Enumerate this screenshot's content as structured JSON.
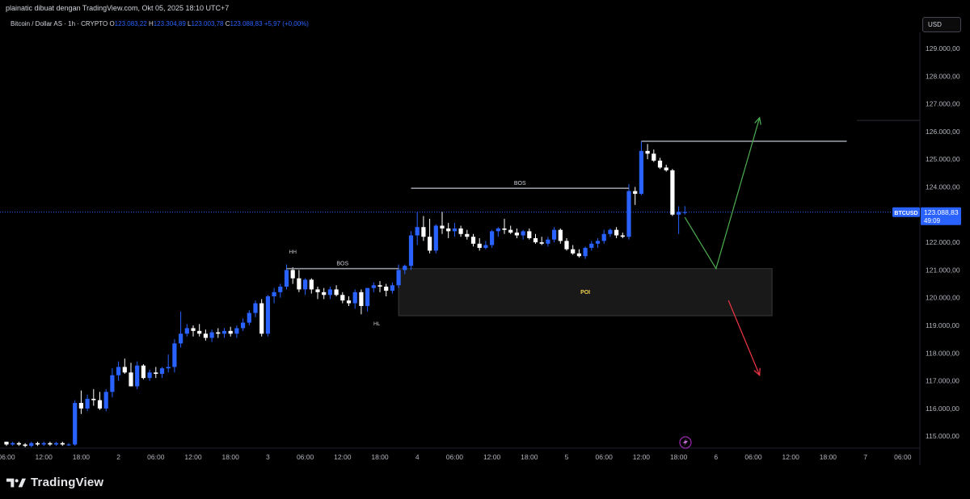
{
  "header": {
    "caption": "plainatic dibuat dengan TradingView.com, Okt 05, 2025 18:10 UTC+7"
  },
  "legend": {
    "symbol": "Bitcoin / Dollar AS · 1h · CRYPTO",
    "o_label": "O",
    "o": "123.083,22",
    "h_label": "H",
    "h": "123.304,89",
    "l_label": "L",
    "l": "123.003,78",
    "c_label": "C",
    "c": "123.088,83",
    "change": "+5,97 (+0,00%)"
  },
  "currency_button": "USD",
  "price_tag": {
    "symbol": "BTCUSD",
    "price": "123.088,83",
    "countdown": "49:09"
  },
  "brand": "TradingView",
  "colors": {
    "background": "#000000",
    "up_candle": "#2962ff",
    "down_candle": "#ffffff",
    "bos_line": "#9598a1",
    "poi_zone": "#1c1c1c",
    "bull_arrow": "#4caf50",
    "bear_arrow": "#f23645",
    "poi_text": "#f0d050"
  },
  "icons": [
    "flash-icon",
    "tradingview-logo-icon"
  ],
  "chart_data": {
    "type": "candlestick",
    "y_axis_labels": [
      "129.000,00",
      "128.000,00",
      "127.000,00",
      "126.000,00",
      "125.000,00",
      "124.000,00",
      "123.000,00",
      "122.000,00",
      "121.000,00",
      "120.000,00",
      "119.000,00",
      "118.000,00",
      "117.000,00",
      "116.000,00",
      "115.000,00"
    ],
    "y_ticks": [
      129000,
      128000,
      127000,
      126000,
      125000,
      124000,
      123000,
      122000,
      121000,
      120000,
      119000,
      118000,
      117000,
      116000,
      115000
    ],
    "ylim": [
      114600,
      129700
    ],
    "x_range": [
      0,
      120
    ],
    "x_ticks": [
      {
        "i": 0,
        "label": "06:00"
      },
      {
        "i": 6,
        "label": "12:00"
      },
      {
        "i": 12,
        "label": "18:00"
      },
      {
        "i": 18,
        "label": "2"
      },
      {
        "i": 24,
        "label": "06:00"
      },
      {
        "i": 30,
        "label": "12:00"
      },
      {
        "i": 36,
        "label": "18:00"
      },
      {
        "i": 42,
        "label": "3"
      },
      {
        "i": 48,
        "label": "06:00"
      },
      {
        "i": 54,
        "label": "12:00"
      },
      {
        "i": 60,
        "label": "18:00"
      },
      {
        "i": 66,
        "label": "4"
      },
      {
        "i": 72,
        "label": "06:00"
      },
      {
        "i": 78,
        "label": "12:00"
      },
      {
        "i": 84,
        "label": "18:00"
      },
      {
        "i": 90,
        "label": "5"
      },
      {
        "i": 96,
        "label": "06:00"
      },
      {
        "i": 102,
        "label": "12:00"
      },
      {
        "i": 108,
        "label": "18:00"
      },
      {
        "i": 114,
        "label": "6"
      },
      {
        "i": 120,
        "label": "06:00"
      },
      {
        "i": 126,
        "label": "12:00"
      },
      {
        "i": 132,
        "label": "18:00"
      },
      {
        "i": 138,
        "label": "7"
      },
      {
        "i": 144,
        "label": "06:00"
      }
    ],
    "candles": [
      [
        114800,
        114800,
        114650,
        114700
      ],
      [
        114700,
        114800,
        114650,
        114750
      ],
      [
        114750,
        114800,
        114650,
        114700
      ],
      [
        114700,
        114750,
        114600,
        114650
      ],
      [
        114650,
        114800,
        114600,
        114750
      ],
      [
        114750,
        114800,
        114650,
        114700
      ],
      [
        114700,
        114800,
        114650,
        114750
      ],
      [
        114750,
        114800,
        114650,
        114700
      ],
      [
        114700,
        114800,
        114650,
        114750
      ],
      [
        114750,
        114800,
        114650,
        114700
      ],
      [
        114700,
        114750,
        114650,
        114700
      ],
      [
        114700,
        116300,
        114650,
        116200
      ],
      [
        116200,
        116650,
        115800,
        116000
      ],
      [
        116000,
        116500,
        115900,
        116350
      ],
      [
        116350,
        116700,
        116100,
        116300
      ],
      [
        116300,
        116600,
        115950,
        116000
      ],
      [
        116000,
        116700,
        115900,
        116600
      ],
      [
        116600,
        117450,
        116400,
        117200
      ],
      [
        117200,
        117700,
        117000,
        117500
      ],
      [
        117500,
        117800,
        117250,
        117300
      ],
      [
        117300,
        117650,
        116800,
        116800
      ],
      [
        116800,
        117700,
        116700,
        117550
      ],
      [
        117550,
        117600,
        117050,
        117100
      ],
      [
        117100,
        117400,
        117000,
        117300
      ],
      [
        117300,
        117500,
        117100,
        117250
      ],
      [
        117250,
        117500,
        117100,
        117450
      ],
      [
        117450,
        117950,
        117300,
        117500
      ],
      [
        117500,
        118500,
        117300,
        118350
      ],
      [
        118350,
        119500,
        118200,
        118700
      ],
      [
        118700,
        119050,
        118600,
        118900
      ],
      [
        118900,
        119000,
        118600,
        118800
      ],
      [
        118800,
        119050,
        118600,
        118700
      ],
      [
        118700,
        118850,
        118450,
        118550
      ],
      [
        118550,
        118850,
        118400,
        118750
      ],
      [
        118750,
        118900,
        118550,
        118700
      ],
      [
        118700,
        118900,
        118550,
        118800
      ],
      [
        118800,
        118950,
        118600,
        118700
      ],
      [
        118700,
        119000,
        118550,
        118900
      ],
      [
        118900,
        119250,
        118800,
        119100
      ],
      [
        119100,
        119550,
        119000,
        119450
      ],
      [
        119450,
        119900,
        119300,
        119800
      ],
      [
        119800,
        119950,
        118600,
        118700
      ],
      [
        118700,
        120100,
        118600,
        120050
      ],
      [
        120050,
        120350,
        119800,
        120200
      ],
      [
        120200,
        120500,
        120000,
        120400
      ],
      [
        120400,
        121200,
        120300,
        121000
      ],
      [
        121000,
        121100,
        120500,
        120700
      ],
      [
        120700,
        121000,
        120200,
        120300
      ],
      [
        120300,
        120700,
        120100,
        120650
      ],
      [
        120650,
        120700,
        120150,
        120300
      ],
      [
        120300,
        120400,
        119950,
        120200
      ],
      [
        120200,
        120350,
        119950,
        120100
      ],
      [
        120100,
        120400,
        119950,
        120300
      ],
      [
        120300,
        120450,
        120050,
        120100
      ],
      [
        120100,
        120200,
        119800,
        119900
      ],
      [
        119900,
        120050,
        119700,
        119800
      ],
      [
        119800,
        120300,
        119600,
        120200
      ],
      [
        120200,
        120300,
        119400,
        119700
      ],
      [
        119700,
        120350,
        119500,
        120350
      ],
      [
        120350,
        120550,
        120200,
        120450
      ],
      [
        120450,
        120600,
        120200,
        120400
      ],
      [
        120400,
        120500,
        120050,
        120250
      ],
      [
        120250,
        120550,
        120150,
        120450
      ],
      [
        120450,
        121200,
        120350,
        121000
      ],
      [
        121000,
        121200,
        120850,
        121150
      ],
      [
        121150,
        122400,
        121000,
        122250
      ],
      [
        122250,
        123100,
        121900,
        122550
      ],
      [
        122550,
        122950,
        122050,
        122200
      ],
      [
        122200,
        122850,
        121600,
        121700
      ],
      [
        121700,
        122650,
        121600,
        122600
      ],
      [
        122600,
        123100,
        122300,
        122500
      ],
      [
        122500,
        122700,
        122150,
        122400
      ],
      [
        122400,
        122700,
        122200,
        122500
      ],
      [
        122500,
        122600,
        122200,
        122300
      ],
      [
        122300,
        122450,
        122100,
        122200
      ],
      [
        122200,
        122300,
        121850,
        121950
      ],
      [
        121950,
        122150,
        121700,
        121800
      ],
      [
        121800,
        122050,
        121750,
        121900
      ],
      [
        121900,
        122450,
        121800,
        122400
      ],
      [
        122400,
        122550,
        122200,
        122500
      ],
      [
        122500,
        122850,
        122300,
        122450
      ],
      [
        122450,
        122600,
        122300,
        122350
      ],
      [
        122350,
        122500,
        122150,
        122250
      ],
      [
        122250,
        122450,
        122100,
        122400
      ],
      [
        122400,
        122500,
        122100,
        122150
      ],
      [
        122150,
        122300,
        121950,
        122000
      ],
      [
        122000,
        122200,
        121900,
        121950
      ],
      [
        121950,
        122200,
        121850,
        122100
      ],
      [
        122100,
        122550,
        122000,
        122450
      ],
      [
        122450,
        122500,
        121950,
        122050
      ],
      [
        122050,
        122150,
        121700,
        121750
      ],
      [
        121750,
        121900,
        121550,
        121600
      ],
      [
        121600,
        121750,
        121450,
        121500
      ],
      [
        121500,
        121850,
        121400,
        121800
      ],
      [
        121800,
        122050,
        121700,
        121950
      ],
      [
        121950,
        122150,
        121800,
        122050
      ],
      [
        122050,
        122450,
        121950,
        122300
      ],
      [
        122300,
        122500,
        122200,
        122450
      ],
      [
        122450,
        122550,
        122150,
        122250
      ],
      [
        122250,
        122350,
        122150,
        122200
      ],
      [
        122200,
        124100,
        122100,
        123850
      ],
      [
        123850,
        124000,
        123350,
        123750
      ],
      [
        123750,
        125650,
        123700,
        125300
      ],
      [
        125300,
        125550,
        125000,
        125200
      ],
      [
        125200,
        125350,
        124900,
        124950
      ],
      [
        124950,
        125050,
        124650,
        124700
      ],
      [
        124700,
        124800,
        124550,
        124600
      ],
      [
        124600,
        124650,
        122950,
        123000
      ],
      [
        123000,
        123300,
        122300,
        123100
      ],
      [
        123083,
        123305,
        123004,
        123089
      ]
    ],
    "annotations": [
      {
        "type": "label",
        "text": "HH"
      },
      {
        "type": "label",
        "text": "HL"
      },
      {
        "type": "level",
        "label": "BOS",
        "price": 121050,
        "from": 45,
        "to": 63
      },
      {
        "type": "level",
        "label": "BOS",
        "price": 123950,
        "from": 65,
        "to": 100
      },
      {
        "type": "level",
        "label": "",
        "price": 125650,
        "from": 102,
        "to": 135
      },
      {
        "type": "zone",
        "label": "POI",
        "from": 63,
        "to": 123,
        "top": 121050,
        "bottom": 119350
      },
      {
        "type": "arrow",
        "direction": "up",
        "path": [
          [
            109,
            122900
          ],
          [
            114,
            121050
          ],
          [
            121,
            126500
          ]
        ]
      },
      {
        "type": "arrow",
        "direction": "down",
        "path": [
          [
            116,
            119900
          ],
          [
            121,
            117200
          ]
        ]
      }
    ],
    "current_price": 123088.83
  }
}
